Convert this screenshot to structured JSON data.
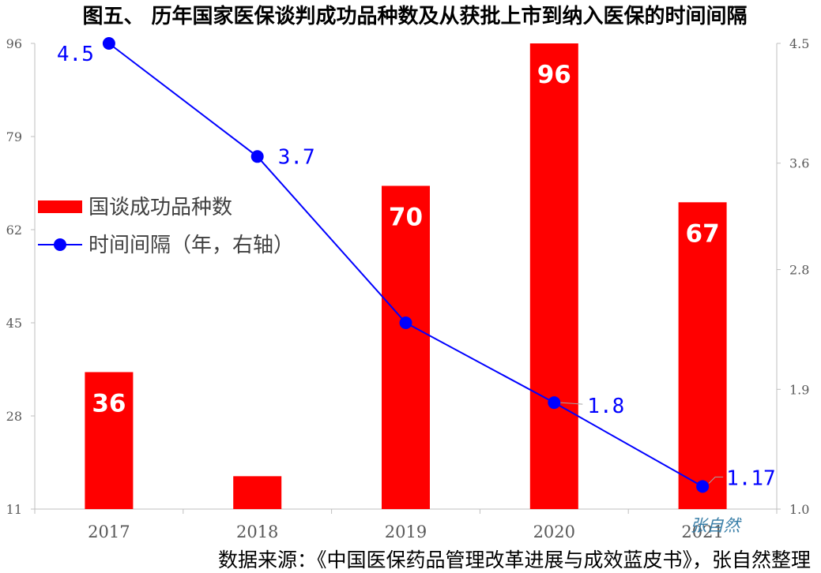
{
  "chart_data": {
    "type": "bar",
    "title": "图五、 历年国家医保谈判成功品种数及从获批上市到纳入医保的时间间隔",
    "categories": [
      "2017",
      "2018",
      "2019",
      "2020",
      "2021"
    ],
    "series": [
      {
        "name": "国谈成功品种数",
        "type": "bar",
        "axis": "left",
        "color": "#ff0000",
        "values": [
          36,
          17,
          70,
          96,
          67
        ],
        "labels": [
          "36",
          "",
          "70",
          "96",
          "67"
        ]
      },
      {
        "name": "时间间隔（年，右轴）",
        "type": "line",
        "axis": "right",
        "color": "#0000ff",
        "values": [
          4.5,
          3.65,
          2.4,
          1.8,
          1.17
        ],
        "labels": [
          "4.5",
          "3.7",
          "",
          "1.8",
          "1.17"
        ]
      }
    ],
    "y_left": {
      "ticks": [
        "11",
        "28",
        "45",
        "62",
        "79",
        "96"
      ],
      "ylim": [
        11,
        96
      ]
    },
    "y_right": {
      "ticks": [
        "1.0",
        "1.9",
        "2.8",
        "3.6",
        "4.5"
      ],
      "ylim": [
        1.0,
        4.5
      ]
    },
    "legend": {
      "position": "left-middle"
    },
    "grid": false,
    "source": "数据来源：《中国医保药品管理改革进展与成效蓝皮书》，张自然整理",
    "watermark": "张自然"
  }
}
